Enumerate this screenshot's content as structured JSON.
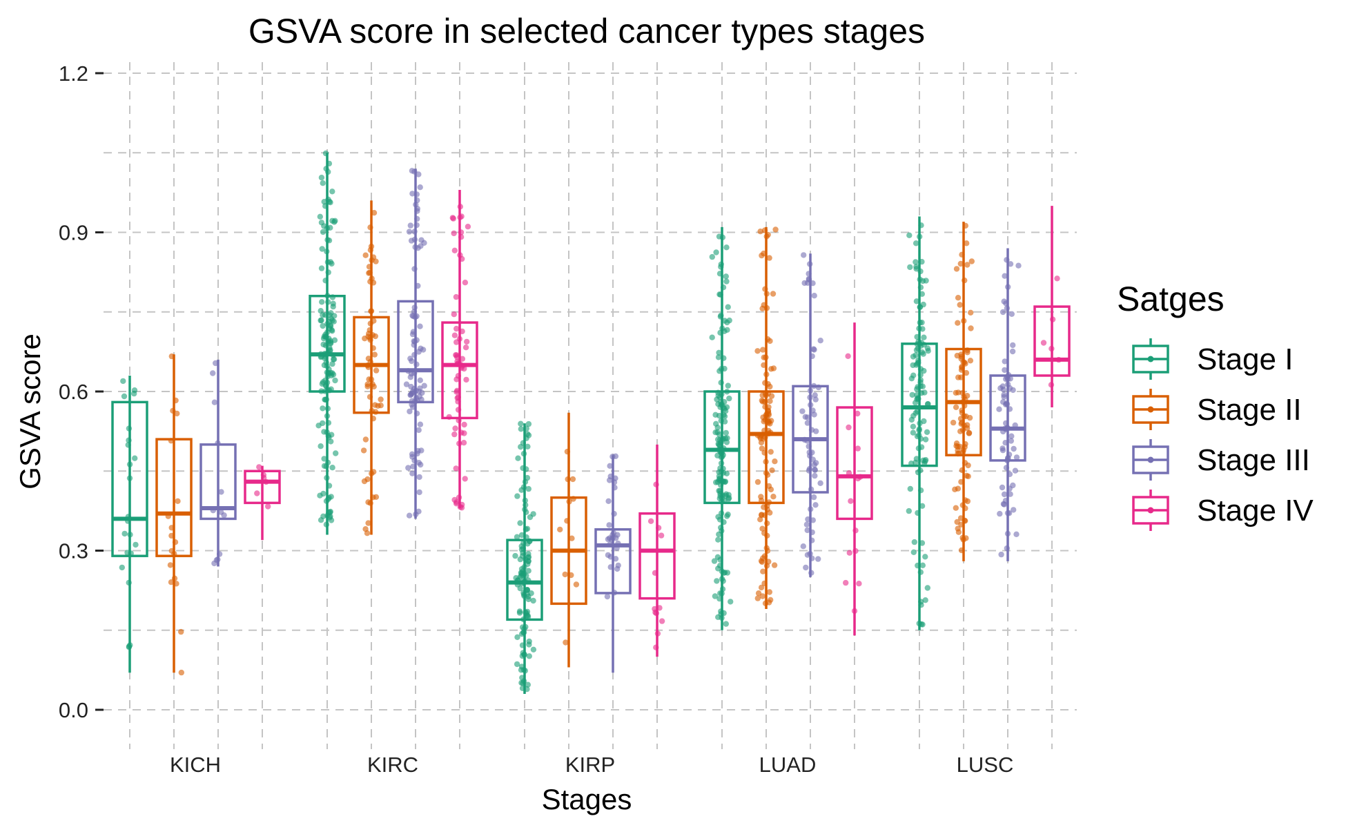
{
  "chart_data": {
    "type": "boxplot",
    "title": "GSVA score in selected cancer types stages",
    "xlabel": "Stages",
    "ylabel": "GSVA score",
    "ylim": [
      -0.05,
      1.25
    ],
    "yticks": [
      "0.0",
      "0.3",
      "0.6",
      "0.9",
      "1.2"
    ],
    "ytick_values": [
      0.0,
      0.3,
      0.6,
      0.9,
      1.2
    ],
    "categories": [
      "KICH",
      "KIRC",
      "KIRP",
      "LUAD",
      "LUSC"
    ],
    "grid": "dashed",
    "legend": {
      "title": "Satges",
      "position": "right",
      "entries": [
        "Stage I",
        "Stage II",
        "Stage III",
        "Stage IV"
      ]
    },
    "colors": [
      "#1b9e77",
      "#d95f02",
      "#7570b3",
      "#e7298a"
    ],
    "series": [
      {
        "name": "Stage I",
        "boxes": [
          {
            "category": "KICH",
            "min": 0.07,
            "q1": 0.29,
            "median": 0.36,
            "q3": 0.58,
            "max": 0.63
          },
          {
            "category": "KIRC",
            "min": 0.33,
            "q1": 0.6,
            "median": 0.67,
            "q3": 0.78,
            "max": 1.05
          },
          {
            "category": "KIRP",
            "min": 0.03,
            "q1": 0.17,
            "median": 0.24,
            "q3": 0.32,
            "max": 0.54
          },
          {
            "category": "LUAD",
            "min": 0.15,
            "q1": 0.39,
            "median": 0.49,
            "q3": 0.6,
            "max": 0.91
          },
          {
            "category": "LUSC",
            "min": 0.15,
            "q1": 0.46,
            "median": 0.57,
            "q3": 0.69,
            "max": 0.93
          }
        ]
      },
      {
        "name": "Stage II",
        "boxes": [
          {
            "category": "KICH",
            "min": 0.07,
            "q1": 0.29,
            "median": 0.37,
            "q3": 0.51,
            "max": 0.67
          },
          {
            "category": "KIRC",
            "min": 0.33,
            "q1": 0.56,
            "median": 0.65,
            "q3": 0.74,
            "max": 0.96
          },
          {
            "category": "KIRP",
            "min": 0.08,
            "q1": 0.2,
            "median": 0.3,
            "q3": 0.4,
            "max": 0.56
          },
          {
            "category": "LUAD",
            "min": 0.19,
            "q1": 0.39,
            "median": 0.52,
            "q3": 0.6,
            "max": 0.91
          },
          {
            "category": "LUSC",
            "min": 0.28,
            "q1": 0.48,
            "median": 0.58,
            "q3": 0.68,
            "max": 0.92
          }
        ]
      },
      {
        "name": "Stage III",
        "boxes": [
          {
            "category": "KICH",
            "min": 0.27,
            "q1": 0.36,
            "median": 0.38,
            "q3": 0.5,
            "max": 0.66
          },
          {
            "category": "KIRC",
            "min": 0.36,
            "q1": 0.58,
            "median": 0.64,
            "q3": 0.77,
            "max": 1.02
          },
          {
            "category": "KIRP",
            "min": 0.07,
            "q1": 0.22,
            "median": 0.31,
            "q3": 0.34,
            "max": 0.48
          },
          {
            "category": "LUAD",
            "min": 0.25,
            "q1": 0.41,
            "median": 0.51,
            "q3": 0.61,
            "max": 0.86
          },
          {
            "category": "LUSC",
            "min": 0.28,
            "q1": 0.47,
            "median": 0.53,
            "q3": 0.63,
            "max": 0.87
          }
        ]
      },
      {
        "name": "Stage IV",
        "boxes": [
          {
            "category": "KICH",
            "min": 0.32,
            "q1": 0.39,
            "median": 0.43,
            "q3": 0.45,
            "max": 0.46
          },
          {
            "category": "KIRC",
            "min": 0.38,
            "q1": 0.55,
            "median": 0.65,
            "q3": 0.73,
            "max": 0.98
          },
          {
            "category": "KIRP",
            "min": 0.1,
            "q1": 0.21,
            "median": 0.3,
            "q3": 0.37,
            "max": 0.5
          },
          {
            "category": "LUAD",
            "min": 0.14,
            "q1": 0.36,
            "median": 0.44,
            "q3": 0.57,
            "max": 0.73
          },
          {
            "category": "LUSC",
            "min": 0.57,
            "q1": 0.63,
            "median": 0.66,
            "q3": 0.76,
            "max": 0.95
          }
        ]
      }
    ]
  }
}
